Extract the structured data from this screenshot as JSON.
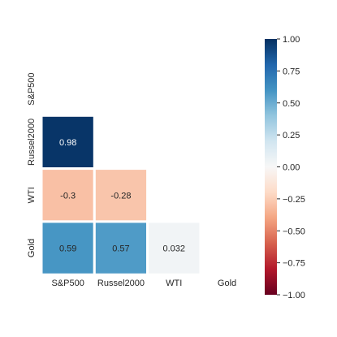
{
  "chart_data": {
    "type": "heatmap",
    "variant": "lower-triangle correlation matrix",
    "title": "",
    "xlabel": "",
    "ylabel": "",
    "x_categories": [
      "S&P500",
      "Russel2000",
      "WTI",
      "Gold"
    ],
    "y_categories": [
      "S&P500",
      "Russel2000",
      "WTI",
      "Gold"
    ],
    "cells": [
      {
        "row": "Russel2000",
        "col": "S&P500",
        "value": 0.98,
        "label": "0.98"
      },
      {
        "row": "WTI",
        "col": "S&P500",
        "value": -0.3,
        "label": "-0.3"
      },
      {
        "row": "WTI",
        "col": "Russel2000",
        "value": -0.28,
        "label": "-0.28"
      },
      {
        "row": "Gold",
        "col": "S&P500",
        "value": 0.59,
        "label": "0.59"
      },
      {
        "row": "Gold",
        "col": "Russel2000",
        "value": 0.57,
        "label": "0.57"
      },
      {
        "row": "Gold",
        "col": "WTI",
        "value": 0.032,
        "label": "0.032"
      }
    ],
    "masked": "upper triangle including diagonal",
    "colormap": "RdBu",
    "colormap_stops": [
      "#67001f",
      "#b2182b",
      "#d6604d",
      "#f4a582",
      "#fddbc7",
      "#f7f7f7",
      "#d1e5f0",
      "#92c5de",
      "#4393c3",
      "#2166ac",
      "#053061"
    ],
    "vmin": -1.0,
    "vmax": 1.0,
    "colorbar": {
      "ticks": [
        1.0,
        0.75,
        0.5,
        0.25,
        0.0,
        -0.25,
        -0.5,
        -0.75,
        -1.0
      ],
      "tick_labels": [
        "1.00",
        "0.75",
        "0.50",
        "0.25",
        "0.00",
        "−0.25",
        "−0.50",
        "−0.75",
        "−1.00"
      ],
      "placement": "right"
    },
    "cell_separator_color": "#ffffff",
    "annotation_colors": {
      "dark_cell": "#ffffff",
      "light_cell": "#262626"
    }
  }
}
